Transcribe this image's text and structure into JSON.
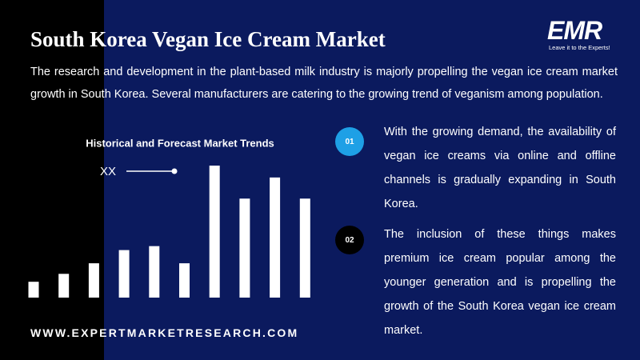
{
  "header": {
    "title": "South Korea Vegan Ice Cream Market",
    "description": "The research and development in the plant-based milk industry is majorly propelling the vegan ice cream market growth in South Korea. Several manufacturers are catering to the growing trend of veganism among population."
  },
  "chart_data": {
    "type": "bar",
    "title": "Historical and Forecast Market Trends",
    "series": [
      {
        "name": "XX",
        "color": "#ffffff",
        "values": [
          12,
          18,
          26,
          36,
          39,
          26,
          100,
          75,
          91,
          75
        ]
      }
    ]
  },
  "points": [
    {
      "number": "01",
      "text": "With the growing demand, the availability of vegan ice creams via online and offline channels is gradually expanding in South Korea."
    },
    {
      "number": "02",
      "text": "The inclusion of these things makes premium ice cream popular among the younger generation and is propelling the growth of the South Korea vegan ice cream market."
    }
  ],
  "footer": {
    "url": "WWW.EXPERTMARKETRESEARCH.COM"
  },
  "logo": {
    "name": "EMR",
    "tagline": "Leave it to the Experts!"
  }
}
